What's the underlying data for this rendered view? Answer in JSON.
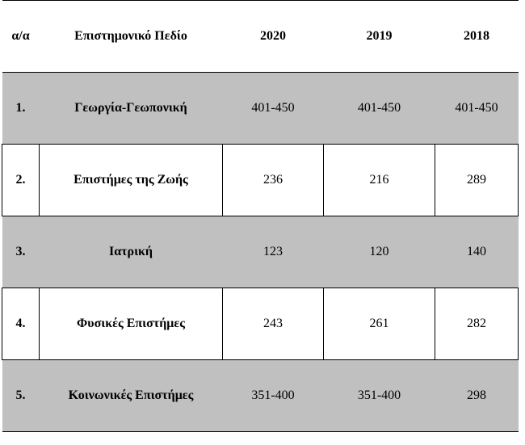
{
  "table": {
    "headers": [
      "α/α",
      "Επιστημονικό Πεδίο",
      "2020",
      "2019",
      "2018"
    ],
    "rows": [
      {
        "index": "1.",
        "field": "Γεωργία-Γεωπονική",
        "y2020": "401-450",
        "y2019": "401-450",
        "y2018": "401-450"
      },
      {
        "index": "2.",
        "field": "Επιστήμες της Ζωής",
        "y2020": "236",
        "y2019": "216",
        "y2018": "289"
      },
      {
        "index": "3.",
        "field": "Ιατρική",
        "y2020": "123",
        "y2019": "120",
        "y2018": "140"
      },
      {
        "index": "4.",
        "field": "Φυσικές Επιστήμες",
        "y2020": "243",
        "y2019": "261",
        "y2018": "282"
      },
      {
        "index": "5.",
        "field": "Κοινωνικές Επιστήμες",
        "y2020": "351-400",
        "y2019": "351-400",
        "y2018": "298"
      }
    ]
  },
  "colors": {
    "shaded_row": "#c0c0c0",
    "white_row": "#ffffff",
    "border": "#000000"
  }
}
